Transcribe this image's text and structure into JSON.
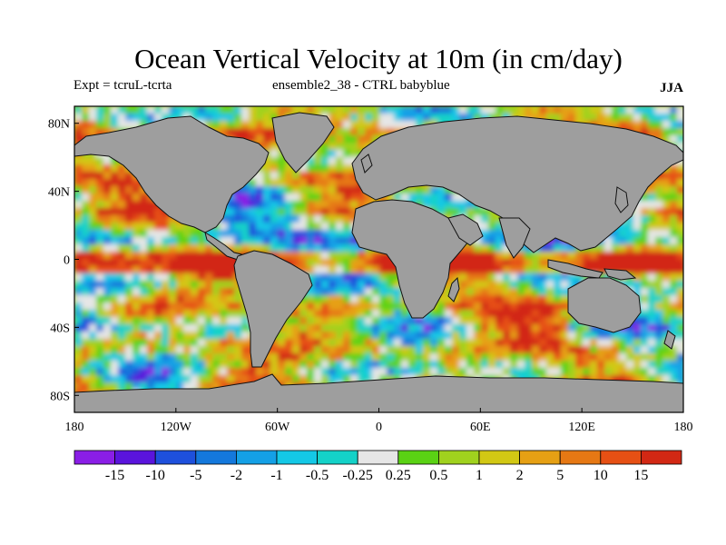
{
  "title": "Ocean Vertical Velocity at 10m (in cm/day)",
  "experiment": "Expt = tcruL-tcrta",
  "ensemble": "ensemble2_38 - CTRL babyblue",
  "season": "JJA",
  "map": {
    "projection": "cylindrical equidistant",
    "land_color": "#9e9e9e",
    "lat_ticks": [
      "80N",
      "40N",
      "0",
      "40S",
      "80S"
    ],
    "lon_ticks": [
      "180",
      "120W",
      "60W",
      "0",
      "60E",
      "120E",
      "180"
    ]
  },
  "colorbar": {
    "labels": [
      "-15",
      "-10",
      "-5",
      "-2",
      "-1",
      "-0.5",
      "-0.25",
      "0.25",
      "0.5",
      "1",
      "2",
      "5",
      "10",
      "15"
    ],
    "colors": [
      "#8a1ee6",
      "#5a14dc",
      "#1e50dc",
      "#1478dc",
      "#14a0e6",
      "#14c8e6",
      "#14d2c8",
      "#e6e6e6",
      "#5ad214",
      "#a0d21e",
      "#d2c814",
      "#e6a014",
      "#e67814",
      "#e65014",
      "#d22814"
    ]
  }
}
